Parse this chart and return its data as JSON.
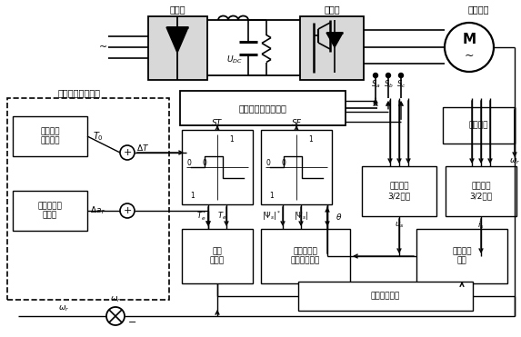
{
  "bg": "#ffffff",
  "labels": {
    "rectifier": "整流器",
    "inverter": "逆变器",
    "motor": "感应电动",
    "hysteresis_region": "转矩带环宽度可调",
    "hyst_base": "带环宽度\n基値确定",
    "hyst_inc": "带环宽度增\n量调节",
    "switch_table": "开关电压矢量选择表",
    "speed_ctrl": "速度\n控制器",
    "flux_calc": "磁链幅値计\n算、扇区判断",
    "stator_volt": "定子电压\n3/2变换",
    "stator_curr": "定子电流\n3/2变换",
    "stator_flux_obs": "定子磁链\n观测",
    "torque_obs": "电磁转矩观测",
    "speed_detect": "速度检测"
  },
  "colors": {
    "line": "#000000",
    "box_edge": "#000000",
    "fill": "#ffffff",
    "gray_fill": "#e8e8e8"
  }
}
